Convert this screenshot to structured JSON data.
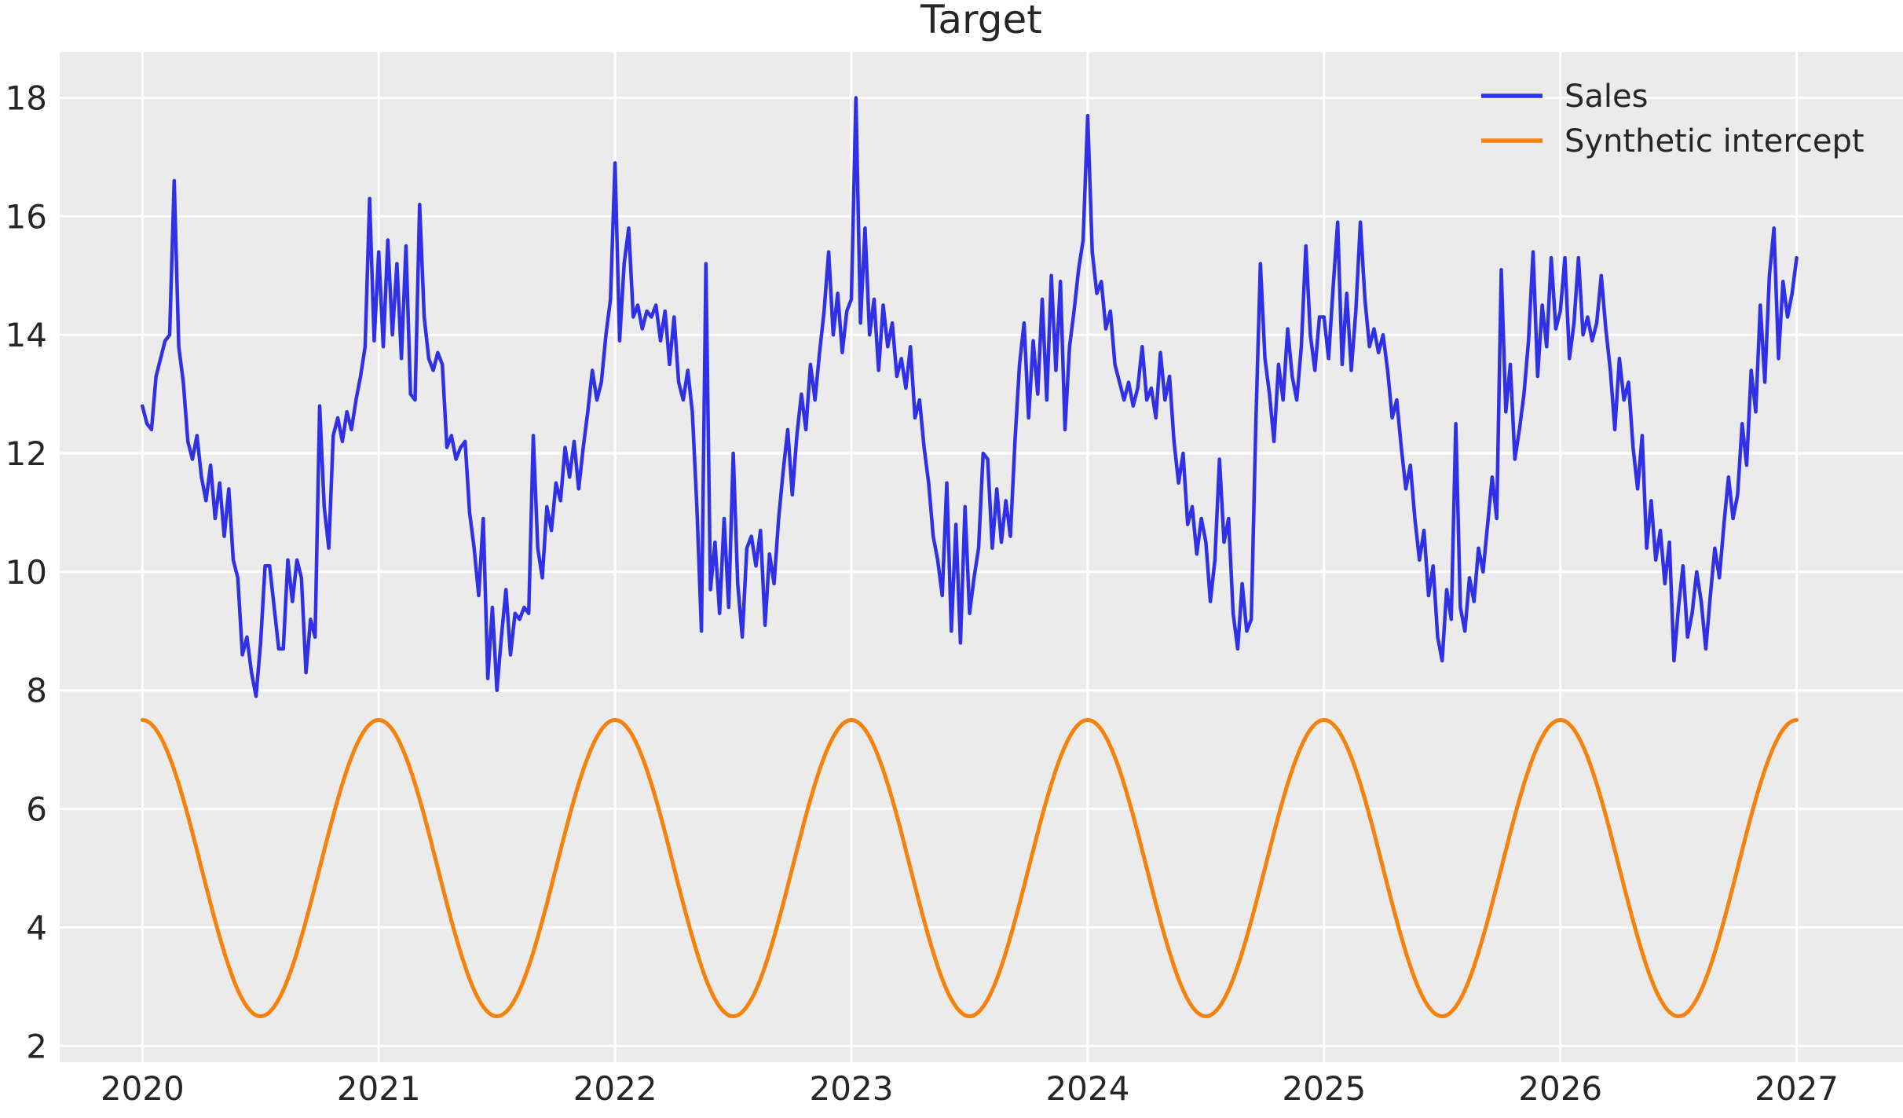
{
  "chart_data": {
    "type": "line",
    "title": "Target",
    "xlabel": "",
    "ylabel": "",
    "xlim": [
      2019.65,
      2027.45
    ],
    "ylim": [
      1.725,
      18.775
    ],
    "xticks": [
      2020,
      2021,
      2022,
      2023,
      2024,
      2025,
      2026,
      2027
    ],
    "yticks": [
      2,
      4,
      6,
      8,
      10,
      12,
      14,
      16,
      18
    ],
    "grid": true,
    "plot_background": "#ebebeb",
    "grid_color": "#ffffff",
    "text_color": "#262626",
    "legend_position": "upper right",
    "legend": {
      "entries": [
        {
          "label": "Sales",
          "color": "#3030e6"
        },
        {
          "label": "Synthetic intercept",
          "color": "#f6820e"
        }
      ]
    },
    "series": [
      {
        "name": "Sales",
        "color": "#3030e6",
        "line_width": 4.5,
        "x_start": 2020,
        "x_step_years": 0.01923076923,
        "values": [
          12.8,
          12.5,
          12.4,
          13.3,
          13.6,
          13.9,
          14.0,
          16.6,
          13.8,
          13.2,
          12.2,
          11.9,
          12.3,
          11.6,
          11.2,
          11.8,
          10.9,
          11.5,
          10.6,
          11.4,
          10.2,
          9.9,
          8.6,
          8.9,
          8.3,
          7.9,
          8.8,
          10.1,
          10.1,
          9.4,
          8.7,
          8.7,
          10.2,
          9.5,
          10.2,
          9.9,
          8.3,
          9.2,
          8.9,
          12.8,
          11.1,
          10.4,
          12.3,
          12.6,
          12.2,
          12.7,
          12.4,
          12.9,
          13.3,
          13.8,
          16.3,
          13.9,
          15.4,
          13.8,
          15.6,
          14.0,
          15.2,
          13.6,
          15.5,
          13.0,
          12.9,
          16.2,
          14.3,
          13.6,
          13.4,
          13.7,
          13.5,
          12.1,
          12.3,
          11.9,
          12.1,
          12.2,
          11.0,
          10.4,
          9.6,
          10.9,
          8.2,
          9.4,
          8.0,
          8.9,
          9.7,
          8.6,
          9.3,
          9.2,
          9.4,
          9.3,
          12.3,
          10.4,
          9.9,
          11.1,
          10.7,
          11.5,
          11.2,
          12.1,
          11.6,
          12.2,
          11.4,
          12.1,
          12.7,
          13.4,
          12.9,
          13.2,
          14.0,
          14.6,
          16.9,
          13.9,
          15.2,
          15.8,
          14.3,
          14.5,
          14.1,
          14.4,
          14.3,
          14.5,
          13.9,
          14.4,
          13.5,
          14.3,
          13.2,
          12.9,
          13.4,
          12.7,
          11.1,
          9.0,
          15.2,
          9.7,
          10.5,
          9.3,
          10.9,
          9.4,
          12.0,
          9.8,
          8.9,
          10.4,
          10.6,
          10.1,
          10.7,
          9.1,
          10.3,
          9.8,
          10.9,
          11.7,
          12.4,
          11.3,
          12.3,
          13.0,
          12.4,
          13.5,
          12.9,
          13.7,
          14.4,
          15.4,
          14.0,
          14.7,
          13.7,
          14.4,
          14.6,
          18.0,
          14.2,
          15.8,
          14.0,
          14.6,
          13.4,
          14.5,
          13.8,
          14.2,
          13.3,
          13.6,
          13.1,
          13.8,
          12.6,
          12.9,
          12.1,
          11.5,
          10.6,
          10.2,
          9.6,
          11.5,
          9.0,
          10.8,
          8.8,
          11.1,
          9.3,
          9.9,
          10.4,
          12.0,
          11.9,
          10.4,
          11.4,
          10.5,
          11.2,
          10.6,
          12.2,
          13.5,
          14.2,
          12.6,
          13.9,
          13.0,
          14.6,
          12.9,
          15.0,
          13.4,
          14.9,
          12.4,
          13.8,
          14.4,
          15.1,
          15.6,
          17.7,
          15.4,
          14.7,
          14.9,
          14.1,
          14.4,
          13.5,
          13.2,
          12.9,
          13.2,
          12.8,
          13.1,
          13.8,
          12.9,
          13.1,
          12.6,
          13.7,
          12.9,
          13.3,
          12.2,
          11.5,
          12.0,
          10.8,
          11.1,
          10.3,
          10.9,
          10.5,
          9.5,
          10.2,
          11.9,
          10.5,
          10.9,
          9.3,
          8.7,
          9.8,
          9.0,
          9.2,
          12.5,
          15.2,
          13.6,
          13.0,
          12.2,
          13.5,
          12.9,
          14.1,
          13.3,
          12.9,
          13.8,
          15.5,
          14.0,
          13.4,
          14.3,
          14.3,
          13.6,
          14.8,
          15.9,
          13.5,
          14.7,
          13.4,
          14.4,
          15.9,
          14.6,
          13.8,
          14.1,
          13.7,
          14.0,
          13.4,
          12.6,
          12.9,
          12.1,
          11.4,
          11.8,
          10.9,
          10.2,
          10.7,
          9.6,
          10.1,
          8.9,
          8.5,
          9.7,
          9.2,
          12.5,
          9.4,
          9.0,
          9.9,
          9.5,
          10.4,
          10.0,
          10.8,
          11.6,
          10.9,
          15.1,
          12.7,
          13.5,
          11.9,
          12.4,
          13.0,
          13.9,
          15.4,
          13.3,
          14.5,
          13.8,
          15.3,
          14.1,
          14.4,
          15.3,
          13.6,
          14.2,
          15.3,
          14.0,
          14.3,
          13.9,
          14.2,
          15.0,
          14.1,
          13.4,
          12.4,
          13.6,
          12.9,
          13.2,
          12.1,
          11.4,
          12.3,
          10.4,
          11.2,
          10.2,
          10.7,
          9.8,
          10.5,
          8.5,
          9.4,
          10.1,
          8.9,
          9.3,
          10.0,
          9.5,
          8.7,
          9.6,
          10.4,
          9.9,
          10.8,
          11.6,
          10.9,
          11.3,
          12.5,
          11.8,
          13.4,
          12.7,
          14.5,
          13.2,
          15.0,
          15.8,
          13.6,
          14.9,
          14.3,
          14.7,
          15.3
        ]
      },
      {
        "name": "Synthetic intercept",
        "color": "#f6820e",
        "line_width": 5,
        "kind": "cosine",
        "formula": "mean + amplitude * cos(2*pi*(t - x_start)/period_years)",
        "mean": 5,
        "amplitude": 2.5,
        "period_years": 1,
        "x_start": 2020,
        "x_end": 2027,
        "max_value": 7.5,
        "min_value": 2.5
      }
    ]
  }
}
